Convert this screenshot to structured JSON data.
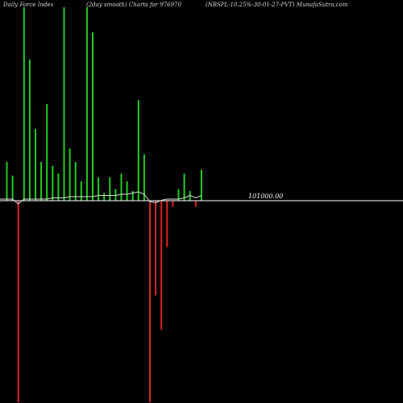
{
  "header": {
    "left": "Daily Force  Index",
    "middle": "(2day smooth) Charts for 976970",
    "right": "(NBSPL-10.25%-30-01-27-PVT) MunafaSutra.com"
  },
  "chart_data": {
    "type": "bar",
    "title": "Daily Force  Index",
    "subtitle": "(2day smooth) Charts for 976970",
    "symbol": "(NBSPL-10.25%-30-01-27-PVT) MunafaSutra.com",
    "reference_label": "101000.00",
    "ylim": [
      -100,
      100
    ],
    "colors": {
      "positive": "#22cc22",
      "negative": "#dd2222",
      "line": "#dddddd",
      "zero": "#ffffff"
    },
    "bars": [
      {
        "x": 1,
        "v": 20
      },
      {
        "x": 2,
        "v": 13
      },
      {
        "x": 3,
        "v": -100
      },
      {
        "x": 4,
        "v": 100
      },
      {
        "x": 5,
        "v": 73
      },
      {
        "x": 6,
        "v": 37
      },
      {
        "x": 7,
        "v": 20
      },
      {
        "x": 8,
        "v": 50
      },
      {
        "x": 9,
        "v": 18
      },
      {
        "x": 10,
        "v": 14
      },
      {
        "x": 11,
        "v": 100
      },
      {
        "x": 12,
        "v": 27
      },
      {
        "x": 13,
        "v": 20
      },
      {
        "x": 14,
        "v": 10
      },
      {
        "x": 15,
        "v": 100
      },
      {
        "x": 16,
        "v": 87
      },
      {
        "x": 17,
        "v": 12
      },
      {
        "x": 18,
        "v": 4
      },
      {
        "x": 19,
        "v": 12
      },
      {
        "x": 20,
        "v": 6
      },
      {
        "x": 21,
        "v": 14
      },
      {
        "x": 22,
        "v": 10
      },
      {
        "x": 23,
        "v": 5
      },
      {
        "x": 24,
        "v": 52
      },
      {
        "x": 25,
        "v": 24
      },
      {
        "x": 26,
        "v": -100
      },
      {
        "x": 27,
        "v": -47
      },
      {
        "x": 28,
        "v": -64
      },
      {
        "x": 29,
        "v": -23
      },
      {
        "x": 30,
        "v": -3
      },
      {
        "x": 31,
        "v": 6
      },
      {
        "x": 32,
        "v": 14
      },
      {
        "x": 33,
        "v": 5
      },
      {
        "x": 34,
        "v": -3
      },
      {
        "x": 35,
        "v": 16
      }
    ],
    "line": [
      {
        "x": 0,
        "v": 0
      },
      {
        "x": 1,
        "v": 0
      },
      {
        "x": 2,
        "v": 0
      },
      {
        "x": 3,
        "v": -2
      },
      {
        "x": 4,
        "v": 0
      },
      {
        "x": 5,
        "v": 0
      },
      {
        "x": 6,
        "v": 0
      },
      {
        "x": 7,
        "v": 0
      },
      {
        "x": 8,
        "v": 0
      },
      {
        "x": 9,
        "v": 0.5
      },
      {
        "x": 10,
        "v": 0.5
      },
      {
        "x": 11,
        "v": 0.5
      },
      {
        "x": 12,
        "v": 1
      },
      {
        "x": 13,
        "v": 1
      },
      {
        "x": 14,
        "v": 1
      },
      {
        "x": 15,
        "v": 1
      },
      {
        "x": 16,
        "v": 1
      },
      {
        "x": 17,
        "v": 1.5
      },
      {
        "x": 18,
        "v": 1.5
      },
      {
        "x": 19,
        "v": 1.5
      },
      {
        "x": 20,
        "v": 1.5
      },
      {
        "x": 21,
        "v": 2
      },
      {
        "x": 22,
        "v": 2
      },
      {
        "x": 23,
        "v": 2.5
      },
      {
        "x": 24,
        "v": 3
      },
      {
        "x": 25,
        "v": 2
      },
      {
        "x": 26,
        "v": -1
      },
      {
        "x": 27,
        "v": -1.5
      },
      {
        "x": 28,
        "v": -0.5
      },
      {
        "x": 29,
        "v": 0
      },
      {
        "x": 30,
        "v": 0
      },
      {
        "x": 31,
        "v": 0
      },
      {
        "x": 32,
        "v": 0.5
      },
      {
        "x": 33,
        "v": 1.5
      },
      {
        "x": 34,
        "v": 0.5
      },
      {
        "x": 35,
        "v": 1.5
      }
    ]
  }
}
